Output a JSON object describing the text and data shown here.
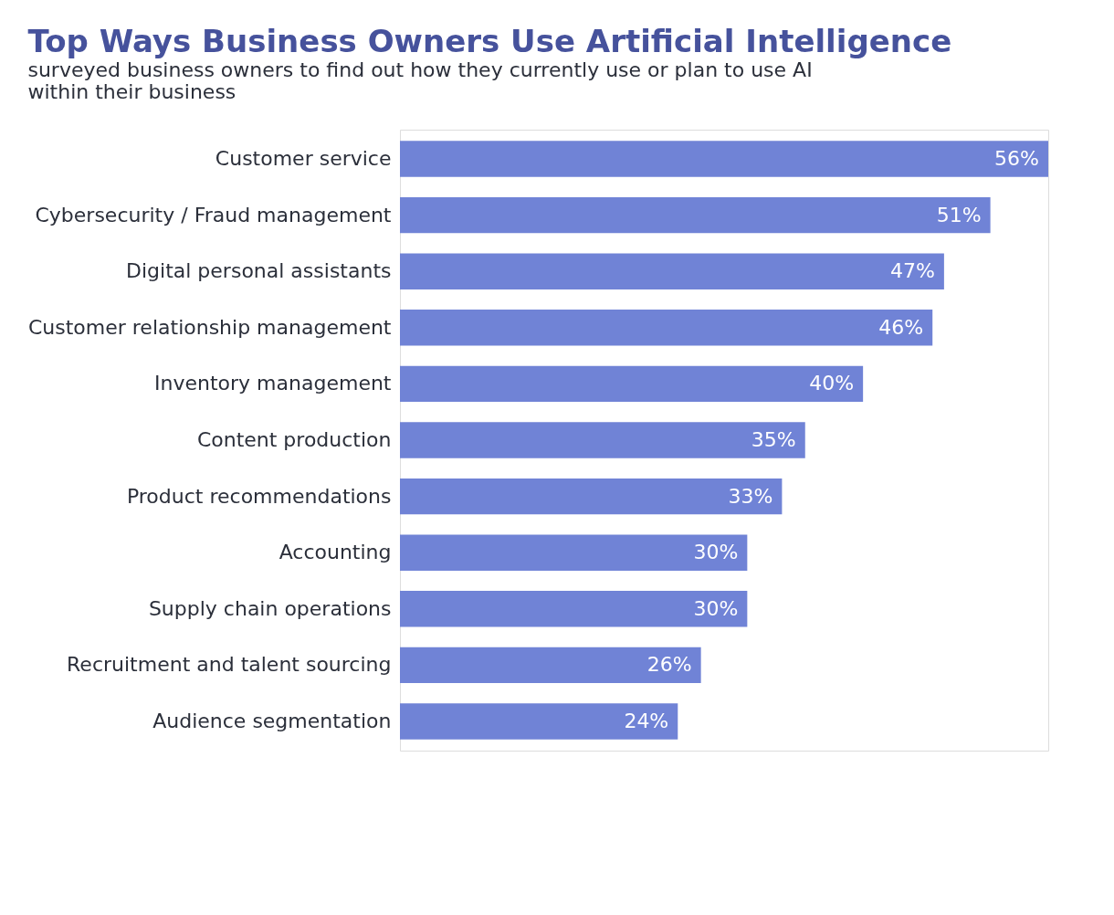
{
  "chart_data": {
    "type": "bar",
    "orientation": "horizontal",
    "title": "Top Ways Business Owners Use Artificial Intelligence",
    "subtitle": "surveyed business owners to find out how they currently use or plan to use AI within their business",
    "categories": [
      "Customer service",
      "Cybersecurity / Fraud management",
      "Digital personal assistants",
      "Customer relationship management",
      "Inventory management",
      "Content production",
      "Product recommendations",
      "Accounting",
      "Supply chain operations",
      "Recruitment and talent sourcing",
      "Audience segmentation"
    ],
    "values": [
      56,
      51,
      47,
      46,
      40,
      35,
      33,
      30,
      30,
      26,
      24
    ],
    "value_labels": [
      "56%",
      "51%",
      "47%",
      "46%",
      "40%",
      "35%",
      "33%",
      "30%",
      "30%",
      "26%",
      "24%"
    ],
    "color": "#7083d6"
  }
}
